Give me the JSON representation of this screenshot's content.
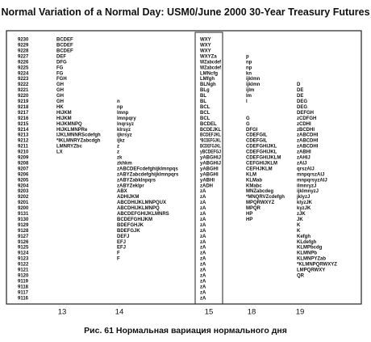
{
  "title": "Normal Variation of a Normal Day: USM0/June 2000 30-Year Treasury Futures",
  "prices": [
    "9230",
    "9229",
    "9228",
    "9227",
    "9226",
    "9225",
    "9224",
    "9223",
    "9222",
    "9221",
    "9220",
    "9219",
    "9218",
    "9217",
    "9216",
    "9215",
    "9214",
    "9213",
    "9212",
    "9211",
    "9210",
    "9209",
    "9208",
    "9207",
    "9206",
    "9205",
    "9204",
    "9203",
    "9202",
    "9201",
    "9200",
    "9131",
    "9130",
    "9129",
    "9128",
    "9127",
    "9126",
    "9125",
    "9124",
    "9123",
    "9122",
    "9121",
    "9120",
    "9119",
    "9118",
    "9117",
    "9116"
  ],
  "columns": [
    {
      "label": "13",
      "rows": [
        "BCDEF",
        "BCDEF",
        "BCDEF",
        "DEF",
        "DFG",
        "FG",
        "FG",
        "FGH",
        "GH",
        "GH",
        "GH",
        "GH",
        "HK",
        "HIJKM",
        "HIJKM",
        "HIJKMNPQ",
        "HIJKLMNPRe",
        "IJKLMNNRScdefgh",
        "*IKLMNRYZabcdgh",
        "LMNRYZbc",
        "LX",
        null,
        null,
        null,
        null,
        null,
        null,
        null,
        null,
        null,
        null,
        null,
        null,
        null,
        null,
        null,
        null,
        null,
        null,
        null,
        null,
        null,
        null,
        null,
        null,
        null,
        null
      ]
    },
    {
      "label": "14",
      "rows": [
        null,
        null,
        null,
        null,
        null,
        null,
        null,
        null,
        null,
        null,
        null,
        "n",
        "np",
        "lmnp",
        "lmnpqry",
        "lnqrsyz",
        "klrsyz",
        "ijkrsyz",
        "ijkz",
        "z",
        "z",
        "zk",
        "zkhkm",
        "zABCDEFcdefghijklmnpqs",
        "zABYZabcdefghijklmnpqrs",
        "zABYZabklnpqrs",
        "zABYZeklpr",
        "ABX",
        "ADHIJKM",
        "ABCDHIJKLMNPQUX",
        "ABCDHIJKLMNPQ",
        "ABCDEFGHIJKLMNRS",
        "BCDEFGHIJKM",
        "BDEFGHJK",
        "BDEFGJK",
        "DEFJ",
        "EFJ",
        "EFJ",
        "F",
        "F",
        null,
        null,
        null,
        null,
        null,
        null,
        null
      ]
    },
    {
      "label": "15",
      "rows": [
        "WXY",
        "WXY",
        "WXY",
        "WXYZa",
        "WZabcdef",
        "WZabcdef",
        "LMNcfg",
        "LMfgh",
        "BLNgh",
        "BLg",
        "BL",
        "BL",
        "BCL",
        "BCL",
        "BCL",
        "BCDEL",
        "BCDEJKL",
        "BCDEFJKL",
        "*BCDEFGJKL",
        "BCDEFGJKL",
        "yBCDEFGJ",
        "yABGHIJ",
        "yABGHIJ",
        "yABGHI",
        "yABGHI",
        "yABHI",
        "zADH",
        "zA",
        "zA",
        "zA",
        "zA",
        "zA",
        "zA",
        "zA",
        "zA",
        "zA",
        "zA",
        "zA",
        "zA",
        "zA",
        "zA",
        "zA",
        "zA",
        "zA",
        "zA",
        "zA",
        "zA"
      ]
    },
    {
      "label": "18",
      "rows": [
        null,
        null,
        null,
        "p",
        "np",
        "np",
        "kn",
        "ijklmn",
        "ijklmn",
        "ijlm",
        "lm",
        "l",
        null,
        null,
        "G",
        "G",
        "DFGI",
        "CDEFGIL",
        "CDEFGIL",
        "CDEFGHIJKL",
        "CDEFGHIJKL",
        "CDEFGHIJKLM",
        "CEFGHIJKLM",
        "CEFHJKLM",
        "KLM",
        "KLMab",
        "KMabc",
        "MNZabcdeg",
        "*MNQRVZcdefgh",
        "MPQRWXYZ",
        "MPQR",
        "HP",
        "HP",
        null,
        null,
        null,
        null,
        null,
        null,
        null,
        null,
        null,
        null,
        null,
        null,
        null,
        null
      ]
    },
    {
      "label": "19",
      "rows": [
        null,
        null,
        null,
        null,
        null,
        null,
        null,
        null,
        "D",
        "DE",
        "DE",
        "DEG",
        "DEG",
        "DEFGH",
        "zCDFGH",
        "zCDHI",
        "zBCDHI",
        "zABCDHI",
        "zABCDHI",
        "zABCDHI",
        "zABHI",
        "zAHIJ",
        "zAIJ",
        "qrszAIJ",
        "mnpqrszAIJ",
        "mnpqrsyzAIJ",
        "ilmnryzJ",
        "ijklmnyzJ",
        "jklyzJ",
        "klyzJK",
        "kyzJK",
        "zJK",
        "JK",
        "K",
        "K",
        "Kefgh",
        "KLdefgh",
        "KLMPbcdg",
        "KLMNPb",
        "KLMNPYZab",
        "*KLMNPQRWXYZ",
        "LMPQRWXY",
        "QR",
        null,
        null,
        null,
        null
      ]
    }
  ],
  "caption": "Рис. 61 Нормальная вариация нормального дня"
}
